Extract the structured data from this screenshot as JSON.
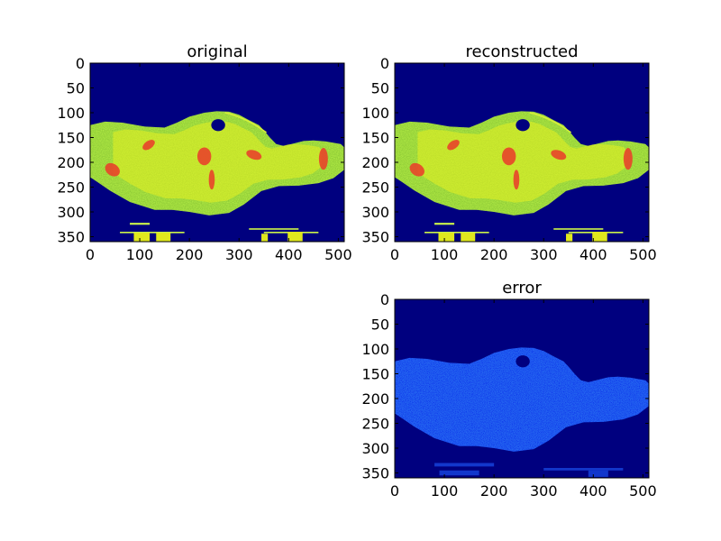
{
  "chart_data": [
    {
      "type": "heatmap",
      "title": "original",
      "colormap": "jet",
      "xlim": [
        0,
        512
      ],
      "ylim": [
        360,
        0
      ],
      "x_ticks": [
        0,
        100,
        200,
        300,
        400,
        500
      ],
      "y_ticks": [
        0,
        50,
        100,
        150,
        200,
        250,
        300,
        350
      ],
      "x_tick_labels": [
        "0",
        "100",
        "200",
        "300",
        "400",
        "500"
      ],
      "y_tick_labels": [
        "0",
        "50",
        "100",
        "150",
        "200",
        "250",
        "300",
        "350"
      ]
    },
    {
      "type": "heatmap",
      "title": "reconstructed",
      "colormap": "jet",
      "xlim": [
        0,
        512
      ],
      "ylim": [
        360,
        0
      ],
      "x_ticks": [
        0,
        100,
        200,
        300,
        400,
        500
      ],
      "y_ticks": [
        0,
        50,
        100,
        150,
        200,
        250,
        300,
        350
      ],
      "x_tick_labels": [
        "0",
        "100",
        "200",
        "300",
        "400",
        "500"
      ],
      "y_tick_labels": [
        "0",
        "50",
        "100",
        "150",
        "200",
        "250",
        "300",
        "350"
      ]
    },
    {
      "type": "heatmap",
      "title": "error",
      "colormap": "jet",
      "xlim": [
        0,
        512
      ],
      "ylim": [
        360,
        0
      ],
      "x_ticks": [
        0,
        100,
        200,
        300,
        400,
        500
      ],
      "y_ticks": [
        0,
        50,
        100,
        150,
        200,
        250,
        300,
        350
      ],
      "x_tick_labels": [
        "0",
        "100",
        "200",
        "300",
        "400",
        "500"
      ],
      "y_tick_labels": [
        "0",
        "50",
        "100",
        "150",
        "200",
        "250",
        "300",
        "350"
      ]
    }
  ],
  "colors": {
    "background_low": "#00007f",
    "body_mid": "#b8f24a",
    "body_high": "#e8f020",
    "hot": "#e8442a",
    "error_body": "#0a1ee8",
    "error_speckle": "#1e5cff"
  }
}
